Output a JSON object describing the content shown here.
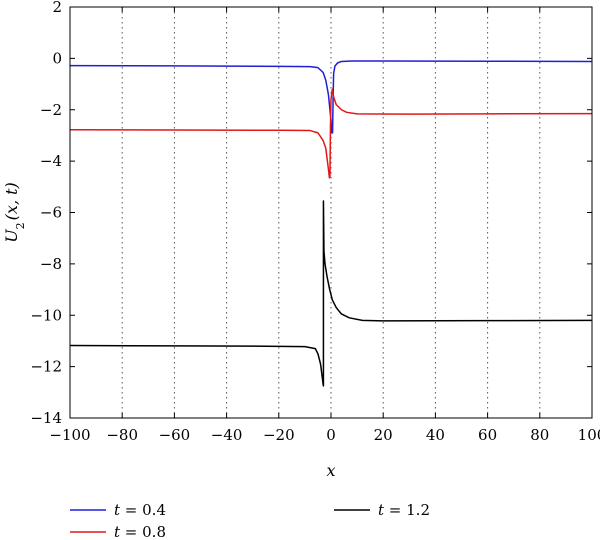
{
  "chart_data": {
    "type": "line",
    "xlabel": "x",
    "ylabel_main": "U",
    "ylabel_sub": "2",
    "ylabel_args": "(x, t)",
    "xlim": [
      -100,
      100
    ],
    "ylim": [
      -14,
      2
    ],
    "xticks": [
      -100,
      -80,
      -60,
      -40,
      -20,
      0,
      20,
      40,
      60,
      80,
      100
    ],
    "yticks": [
      -14,
      -12,
      -10,
      -8,
      -6,
      -4,
      -2,
      0,
      2
    ],
    "grid": "vertical-dotted",
    "legend_placement": "bottom",
    "series": [
      {
        "name": "t = 0.4",
        "legend_var": "t",
        "legend_value": "= 0.4",
        "color": "#1f1fd6",
        "points": [
          [
            -100,
            -0.28
          ],
          [
            -60,
            -0.29
          ],
          [
            -20,
            -0.31
          ],
          [
            -8,
            -0.32
          ],
          [
            -5,
            -0.36
          ],
          [
            -3,
            -0.55
          ],
          [
            -2,
            -0.85
          ],
          [
            -1,
            -1.4
          ],
          [
            -0.5,
            -1.9
          ],
          [
            0,
            -2.4
          ],
          [
            0.2,
            -2.9
          ],
          [
            0.6,
            -2.9
          ],
          [
            0.8,
            -1.6
          ],
          [
            1,
            -0.6
          ],
          [
            1.5,
            -0.3
          ],
          [
            2.5,
            -0.18
          ],
          [
            4,
            -0.12
          ],
          [
            8,
            -0.1
          ],
          [
            20,
            -0.1
          ],
          [
            60,
            -0.11
          ],
          [
            100,
            -0.12
          ]
        ]
      },
      {
        "name": "t = 0.8",
        "legend_var": "t",
        "legend_value": "= 0.8",
        "color": "#e01818",
        "points": [
          [
            -100,
            -2.78
          ],
          [
            -60,
            -2.79
          ],
          [
            -20,
            -2.8
          ],
          [
            -8,
            -2.81
          ],
          [
            -5,
            -2.9
          ],
          [
            -3,
            -3.2
          ],
          [
            -2,
            -3.5
          ],
          [
            -1.5,
            -3.9
          ],
          [
            -1,
            -4.3
          ],
          [
            -0.6,
            -4.65
          ],
          [
            -0.4,
            -4.6
          ],
          [
            -0.2,
            -2.6
          ],
          [
            0,
            -1.6
          ],
          [
            0.5,
            -1.2
          ],
          [
            1,
            -1.5
          ],
          [
            2,
            -1.8
          ],
          [
            4,
            -2.0
          ],
          [
            6,
            -2.1
          ],
          [
            10,
            -2.16
          ],
          [
            30,
            -2.17
          ],
          [
            60,
            -2.16
          ],
          [
            100,
            -2.15
          ]
        ]
      },
      {
        "name": "t = 1.2",
        "legend_var": "t",
        "legend_value": "= 1.2",
        "color": "#000000",
        "points": [
          [
            -100,
            -11.18
          ],
          [
            -60,
            -11.19
          ],
          [
            -30,
            -11.2
          ],
          [
            -10,
            -11.22
          ],
          [
            -6,
            -11.3
          ],
          [
            -5,
            -11.5
          ],
          [
            -4,
            -11.9
          ],
          [
            -3.5,
            -12.3
          ],
          [
            -3,
            -12.7
          ],
          [
            -2.9,
            -12.75
          ],
          [
            -2.9,
            -5.55
          ],
          [
            -2.7,
            -7.5
          ],
          [
            -2.3,
            -8.0
          ],
          [
            -1.5,
            -8.5
          ],
          [
            -0.5,
            -9.0
          ],
          [
            0.5,
            -9.4
          ],
          [
            2,
            -9.7
          ],
          [
            4,
            -9.95
          ],
          [
            7,
            -10.1
          ],
          [
            12,
            -10.2
          ],
          [
            20,
            -10.22
          ],
          [
            60,
            -10.21
          ],
          [
            100,
            -10.2
          ]
        ]
      }
    ]
  }
}
